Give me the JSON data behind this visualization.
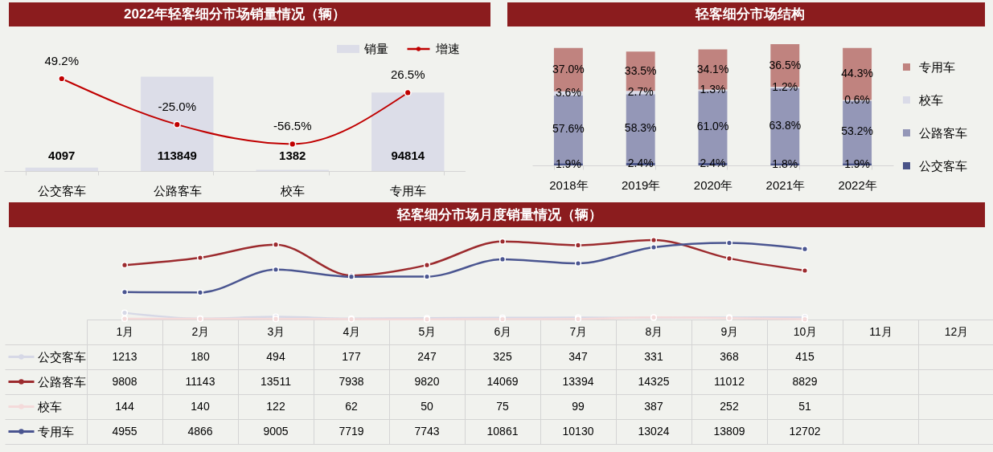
{
  "chart_data": [
    {
      "type": "bar",
      "title": "2022年轻客细分市场销量情况（辆）",
      "categories": [
        "公交客车",
        "公路客车",
        "校车",
        "专用车"
      ],
      "series": [
        {
          "name": "销量",
          "type": "bar",
          "color": "#dcdde8",
          "values": [
            4097,
            113849,
            1382,
            94814
          ],
          "value_labels": [
            "4097",
            "113849",
            "1382",
            "94814"
          ]
        },
        {
          "name": "增速",
          "type": "line",
          "axis": "y2",
          "color": "#c00000",
          "values": [
            49.2,
            -25.0,
            -56.5,
            26.5
          ],
          "value_labels": [
            "49.2%",
            "-25.0%",
            "-56.5%",
            "26.5%"
          ]
        }
      ],
      "legend": "top right",
      "tick_labels": "x",
      "marker": "circle"
    },
    {
      "type": "bar",
      "title": "轻客细分市场结构",
      "categories": [
        "2018年",
        "2019年",
        "2020年",
        "2021年",
        "2022年"
      ],
      "stacked": true,
      "series": [
        {
          "name": "公交客车",
          "color": "#4a5488",
          "values": [
            1.9,
            2.4,
            2.4,
            1.8,
            1.9
          ],
          "value_labels": [
            "1.9%",
            "2.4%",
            "2.4%",
            "1.8%",
            "1.9%"
          ]
        },
        {
          "name": "公路客车",
          "color": "#9497b7",
          "values": [
            57.6,
            58.3,
            61.0,
            63.8,
            53.2
          ],
          "value_labels": [
            "57.6%",
            "58.3%",
            "61.0%",
            "63.8%",
            "53.2%"
          ]
        },
        {
          "name": "校车",
          "color": "#dadbe8",
          "values": [
            3.6,
            2.7,
            1.3,
            1.2,
            0.6
          ],
          "value_labels": [
            "3.6%",
            "2.7%",
            "1.3%",
            "1.2%",
            "0.6%"
          ]
        },
        {
          "name": "专用车",
          "color": "#c0837f",
          "values": [
            37.0,
            33.5,
            34.1,
            36.5,
            44.3
          ],
          "value_labels": [
            "37.0%",
            "33.5%",
            "34.1%",
            "36.5%",
            "44.3%"
          ]
        }
      ],
      "legend": "right",
      "tick_labels": "x"
    },
    {
      "type": "line",
      "title": "轻客细分市场月度销量情况（辆）",
      "categories": [
        "1月",
        "2月",
        "3月",
        "4月",
        "5月",
        "6月",
        "7月",
        "8月",
        "9月",
        "10月",
        "11月",
        "12月"
      ],
      "series": [
        {
          "name": "公交客车",
          "color": "#d6d8e6",
          "values": [
            1213,
            180,
            494,
            177,
            247,
            325,
            347,
            331,
            368,
            415,
            null,
            null
          ]
        },
        {
          "name": "公路客车",
          "color": "#9c2b2e",
          "values": [
            9808,
            11143,
            13511,
            7938,
            9820,
            14069,
            13394,
            14325,
            11012,
            8829,
            null,
            null
          ]
        },
        {
          "name": "校车",
          "color": "#f4dada",
          "values": [
            144,
            140,
            122,
            62,
            50,
            75,
            99,
            387,
            252,
            51,
            null,
            null
          ]
        },
        {
          "name": "专用车",
          "color": "#4a5590",
          "values": [
            4955,
            4866,
            9005,
            7719,
            7743,
            10861,
            10130,
            13024,
            13809,
            12702,
            null,
            null
          ]
        }
      ],
      "data_labels": true,
      "legend": "left",
      "marker": "circle",
      "tick_labels": "x"
    }
  ]
}
